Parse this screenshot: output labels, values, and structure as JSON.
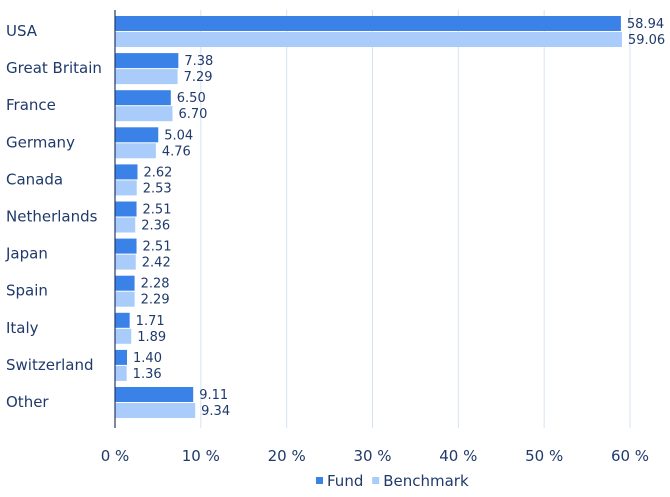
{
  "chart_data": {
    "type": "bar",
    "orientation": "horizontal",
    "categories": [
      "USA",
      "Great Britain",
      "France",
      "Germany",
      "Canada",
      "Netherlands",
      "Japan",
      "Spain",
      "Italy",
      "Switzerland",
      "Other"
    ],
    "series": [
      {
        "name": "Fund",
        "color": "#3b82e8",
        "values": [
          58.94,
          7.38,
          6.5,
          5.04,
          2.62,
          2.51,
          2.51,
          2.28,
          1.71,
          1.4,
          9.11
        ],
        "labels": [
          "58.94",
          "7.38",
          "6.50",
          "5.04",
          "2.62",
          "2.51",
          "2.51",
          "2.28",
          "1.71",
          "1.40",
          "9.11"
        ]
      },
      {
        "name": "Benchmark",
        "color": "#a9ccfa",
        "values": [
          59.06,
          7.29,
          6.7,
          4.76,
          2.53,
          2.36,
          2.42,
          2.29,
          1.89,
          1.36,
          9.34
        ],
        "labels": [
          "59.06",
          "7.29",
          "6.70",
          "4.76",
          "2.53",
          "2.36",
          "2.42",
          "2.29",
          "1.89",
          "1.36",
          "9.34"
        ]
      }
    ],
    "xlim": [
      0,
      60
    ],
    "xticks": [
      0,
      10,
      20,
      30,
      40,
      50,
      60
    ],
    "xtick_labels": [
      "0 %",
      "10 %",
      "20 %",
      "30 %",
      "40 %",
      "50 %",
      "60 %"
    ],
    "grid": true,
    "legend_position": "bottom-center",
    "title": "",
    "xlabel": "",
    "ylabel": ""
  }
}
